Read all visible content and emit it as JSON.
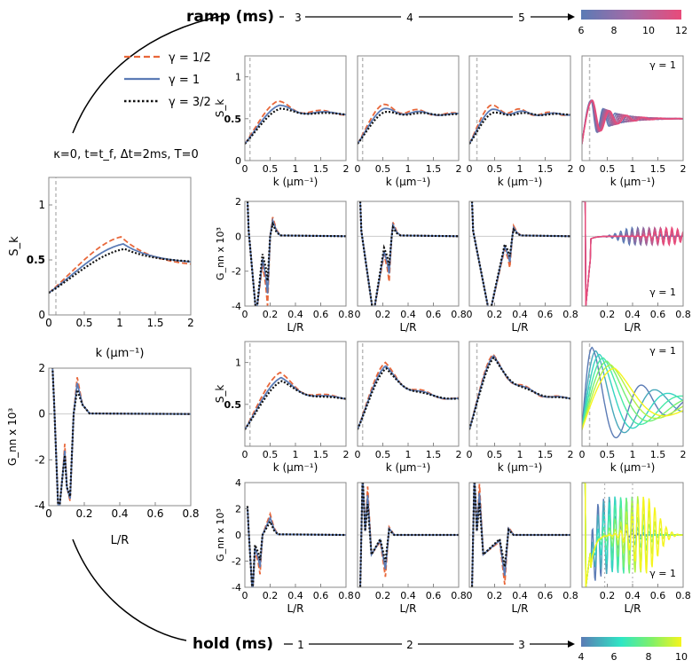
{
  "header": {
    "ramp_label": "ramp (ms)",
    "ramp_ticks": [
      "3",
      "4",
      "5"
    ],
    "ramp_colorbar_ticks": [
      "6",
      "8",
      "10",
      "12"
    ],
    "hold_label": "hold (ms)",
    "hold_ticks": [
      "1",
      "2",
      "3"
    ],
    "hold_colorbar_ticks": [
      "4",
      "6",
      "8",
      "10"
    ]
  },
  "params_text": "κ=0, t=t_f, Δt=2ms, T=0",
  "legend": [
    {
      "label": "γ = 1/2",
      "color": "#e8673a",
      "dash": "dashed"
    },
    {
      "label": "γ = 1",
      "color": "#5b7bb5",
      "dash": "solid"
    },
    {
      "label": "γ = 3/2",
      "color": "#111111",
      "dash": "dotted"
    }
  ],
  "gamma_annotation": "γ = 1",
  "colors": {
    "orange": "#e8673a",
    "blue": "#5b7bb5",
    "black": "#111111",
    "vline": "#bbbbbb"
  },
  "chart_data": [
    {
      "id": "left-Sk",
      "type": "line",
      "xlabel": "k (μm⁻¹)",
      "ylabel": "S_k",
      "xlim": [
        0,
        2
      ],
      "ylim": [
        0,
        1.25
      ],
      "xticks": [
        "0",
        "0.5",
        "1",
        "1.5",
        "2"
      ],
      "yticks": [
        "0",
        "0.5",
        "1"
      ],
      "vline_x": 0.1,
      "series": [
        {
          "name": "γ = 1/2",
          "peak_x": 1.02,
          "peak_y": 0.71,
          "end_y": 0.43
        },
        {
          "name": "γ = 1",
          "peak_x": 1.05,
          "peak_y": 0.645,
          "end_y": 0.46
        },
        {
          "name": "γ = 3/2",
          "peak_x": 1.07,
          "peak_y": 0.6,
          "end_y": 0.47
        }
      ]
    },
    {
      "id": "left-Gnn",
      "type": "line",
      "xlabel": "L/R",
      "ylabel": "G_nn x 10³",
      "xlim": [
        0,
        0.8
      ],
      "ylim": [
        -4,
        2
      ],
      "xticks": [
        "0",
        "0.2",
        "0.4",
        "0.6",
        "0.8"
      ],
      "yticks": [
        "-4",
        "-2",
        "0",
        "2"
      ],
      "series": [
        {
          "name": "γ = 1/2",
          "dip1": [
            0.09,
            -1.3
          ],
          "dip2": [
            0.12,
            -2.0
          ],
          "peak": [
            0.16,
            1.6
          ]
        },
        {
          "name": "γ = 1",
          "dip1": [
            0.09,
            -1.6
          ],
          "dip2": [
            0.12,
            -1.9
          ],
          "peak": [
            0.16,
            1.35
          ]
        },
        {
          "name": "γ = 3/2",
          "dip1": [
            0.09,
            -1.8
          ],
          "dip2": [
            0.12,
            -1.8
          ],
          "peak": [
            0.16,
            1.05
          ]
        }
      ]
    },
    {
      "id": "grid",
      "type": "line",
      "rows": [
        {
          "kind": "Sk",
          "group": "ramp",
          "xlabel": "k (μm⁻¹)",
          "ylabel": "S_k",
          "xlim": [
            0,
            2
          ],
          "ylim": [
            0,
            1.25
          ],
          "xticks": [
            "0",
            "0.5",
            "1",
            "1.5",
            "2"
          ],
          "yticks": [
            "0",
            "0.5",
            "1"
          ],
          "panels": [
            {
              "param": "ramp 3 ms",
              "vline_x": 0.1,
              "peaks": [
                [
                  0.65,
                  0.71
                ],
                [
                  0.68,
                  0.66
                ],
                [
                  0.7,
                  0.62
                ]
              ]
            },
            {
              "param": "ramp 4 ms",
              "vline_x": 0.1,
              "peaks": [
                [
                  0.5,
                  0.67
                ],
                [
                  0.52,
                  0.62
                ],
                [
                  0.54,
                  0.58
                ]
              ]
            },
            {
              "param": "ramp 5 ms",
              "vline_x": 0.15,
              "peaks": [
                [
                  0.42,
                  0.66
                ],
                [
                  0.44,
                  0.61
                ],
                [
                  0.46,
                  0.57
                ]
              ]
            },
            {
              "param": "ramp 6–12 ms",
              "vline_x": 0.15,
              "family": "ramp"
            }
          ]
        },
        {
          "kind": "Gnn",
          "group": "ramp",
          "xlabel": "L/R",
          "ylabel": "G_nn x 10³",
          "xlim": [
            0,
            0.8
          ],
          "ylim": [
            -4,
            2
          ],
          "xticks": [
            "0",
            "0.2",
            "0.4",
            "0.6",
            "0.8"
          ],
          "yticks": [
            "-4",
            "-2",
            "0",
            "2"
          ],
          "xticks_last": [
            "0.2",
            "0.4",
            "0.6",
            "0.8"
          ],
          "panels": [
            {
              "param": "ramp 3 ms",
              "dip": [
                0.18,
                -4.0
              ],
              "peak": [
                0.22,
                1.1
              ]
            },
            {
              "param": "ramp 4 ms",
              "dip": [
                0.25,
                -2.6
              ],
              "peak": [
                0.28,
                0.8
              ]
            },
            {
              "param": "ramp 5 ms",
              "dip": [
                0.32,
                -1.8
              ],
              "peak": [
                0.35,
                0.6
              ]
            },
            {
              "param": "ramp 6–12 ms",
              "family": "ramp"
            }
          ]
        },
        {
          "kind": "Sk",
          "group": "hold",
          "xlabel": "k (μm⁻¹)",
          "ylabel": "S_k",
          "xlim": [
            0,
            2
          ],
          "ylim": [
            0,
            1.25
          ],
          "xticks": [
            "0",
            "0.5",
            "1",
            "1.5",
            "2"
          ],
          "yticks": [
            "0.5",
            "1"
          ],
          "panels": [
            {
              "param": "hold 1 ms",
              "vline_x": 0.1,
              "peaks": [
                [
                  0.7,
                  0.88
                ],
                [
                  0.72,
                  0.82
                ],
                [
                  0.74,
                  0.78
                ]
              ]
            },
            {
              "param": "hold 2 ms",
              "vline_x": 0.1,
              "peaks": [
                [
                  0.55,
                  1.0
                ],
                [
                  0.56,
                  0.96
                ],
                [
                  0.57,
                  0.93
                ]
              ]
            },
            {
              "param": "hold 3 ms",
              "vline_x": 0.15,
              "peaks": [
                [
                  0.47,
                  1.1
                ],
                [
                  0.48,
                  1.08
                ],
                [
                  0.49,
                  1.06
                ]
              ]
            },
            {
              "param": "hold 4–10 ms",
              "vline_x": 0.15,
              "family": "hold"
            }
          ]
        },
        {
          "kind": "Gnn",
          "group": "hold",
          "xlabel": "L/R",
          "ylabel": "G_nn x 10³",
          "xlim": [
            0,
            0.8
          ],
          "ylim": [
            -4,
            4
          ],
          "xticks": [
            "0",
            "0.2",
            "0.4",
            "0.6",
            "0.8"
          ],
          "yticks": [
            "-4",
            "-2",
            "0",
            "2",
            "4"
          ],
          "xticks_last": [
            "0.2",
            "0.4",
            "0.6",
            "0.8"
          ],
          "panels": [
            {
              "param": "hold 1 ms",
              "dip": [
                0.12,
                -3.0
              ],
              "peak": [
                0.2,
                1.6
              ]
            },
            {
              "param": "hold 2 ms",
              "dip": [
                0.22,
                -3.2
              ],
              "peak": [
                0.08,
                3.7
              ]
            },
            {
              "param": "hold 3 ms",
              "dip": [
                0.28,
                -3.8
              ],
              "peak": [
                0.08,
                3.9
              ]
            },
            {
              "param": "hold 4–10 ms",
              "family": "hold"
            }
          ]
        }
      ]
    }
  ]
}
